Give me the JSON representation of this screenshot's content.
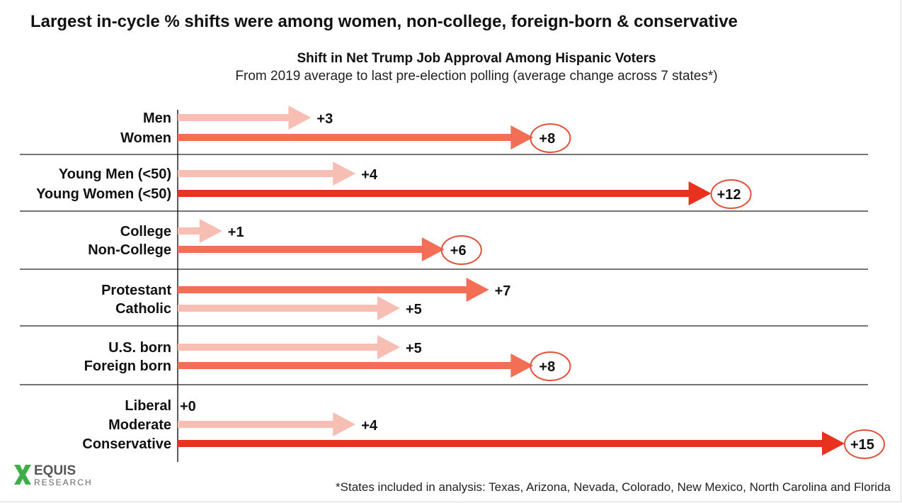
{
  "headline": "Largest in-cycle % shifts were among women, non-college, foreign-born & conservative",
  "footnote": "*States included in analysis: Texas, Arizona, Nevada, Colorado, New Mexico, North Carolina and Florida",
  "logo": {
    "word": "EQUIS",
    "sub": "RESEARCH"
  },
  "colors": {
    "highlight": "#e8321e",
    "light": "#f7beb4",
    "medium": "#f26e55",
    "circle": "#e2503a",
    "divider": "#222222"
  },
  "chart_data": {
    "type": "bar",
    "orientation": "horizontal",
    "title": "Shift in Net Trump Job Approval Among Hispanic Voters",
    "subtitle": "From 2019 average to last pre-election polling (average change across 7 states*)",
    "xlim": [
      0,
      15
    ],
    "grid": false,
    "groups": [
      {
        "bars": [
          {
            "label": "Men",
            "value": 3,
            "display": "+3",
            "style": "light",
            "circled": false
          },
          {
            "label": "Women",
            "value": 8,
            "display": "+8",
            "style": "medium",
            "circled": true
          }
        ]
      },
      {
        "bars": [
          {
            "label": "Young Men (<50)",
            "value": 4,
            "display": "+4",
            "style": "light",
            "circled": false
          },
          {
            "label": "Young Women (<50)",
            "value": 12,
            "display": "+12",
            "style": "highlight",
            "circled": true
          }
        ]
      },
      {
        "bars": [
          {
            "label": "College",
            "value": 1,
            "display": "+1",
            "style": "light",
            "circled": false
          },
          {
            "label": "Non-College",
            "value": 6,
            "display": "+6",
            "style": "medium",
            "circled": true
          }
        ]
      },
      {
        "bars": [
          {
            "label": "Protestant",
            "value": 7,
            "display": "+7",
            "style": "medium",
            "circled": false
          },
          {
            "label": "Catholic",
            "value": 5,
            "display": "+5",
            "style": "light",
            "circled": false
          }
        ]
      },
      {
        "bars": [
          {
            "label": "U.S. born",
            "value": 5,
            "display": "+5",
            "style": "light",
            "circled": false
          },
          {
            "label": "Foreign born",
            "value": 8,
            "display": "+8",
            "style": "medium",
            "circled": true
          }
        ]
      },
      {
        "bars": [
          {
            "label": "Liberal",
            "value": 0,
            "display": "+0",
            "style": "light",
            "circled": false
          },
          {
            "label": "Moderate",
            "value": 4,
            "display": "+4",
            "style": "light",
            "circled": false
          },
          {
            "label": "Conservative",
            "value": 15,
            "display": "+15",
            "style": "highlight",
            "circled": true
          }
        ]
      }
    ]
  }
}
